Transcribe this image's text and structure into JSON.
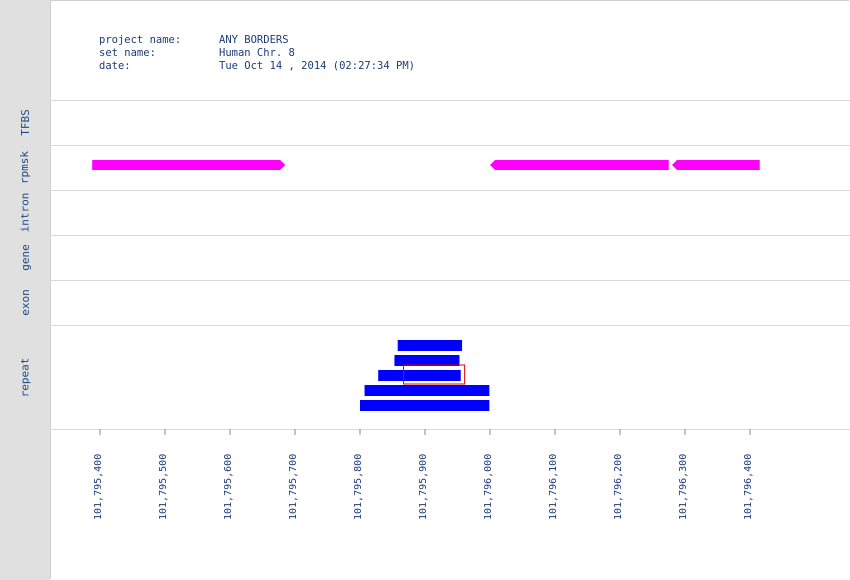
{
  "header": {
    "project_name_label": "project name:",
    "project_name": "ANY BORDERS",
    "set_name_label": "set name:",
    "set_name": "Human Chr. 8",
    "date_label": "date:",
    "date": "Tue Oct 14 , 2014 (02:27:34 PM)"
  },
  "tracks": [
    "TFBS",
    "rpmsk",
    "intron",
    "gene",
    "exon",
    "repeat"
  ],
  "colors": {
    "rpmsk": "#ff00ff",
    "repeat": "#0000ff",
    "highlight": "#e00000",
    "axis_text": "#1e3c78",
    "sidebar": "#e0e0e0"
  },
  "chart_data": {
    "type": "genome-track",
    "x_ticks": [
      101795400,
      101795500,
      101795600,
      101795700,
      101795800,
      101795900,
      101796000,
      101796100,
      101796200,
      101796300,
      101796400
    ],
    "x_tick_labels": [
      "101,795,400",
      "101,795,500",
      "101,795,600",
      "101,795,700",
      "101,795,800",
      "101,795,900",
      "101,796,000",
      "101,796,100",
      "101,796,200",
      "101,796,300",
      "101,796,400"
    ],
    "rpmsk_features": [
      {
        "start": 101795388,
        "end": 101795685,
        "strand": "+"
      },
      {
        "start": 101796000,
        "end": 101796275,
        "strand": "-"
      },
      {
        "start": 101796280,
        "end": 101796415,
        "strand": "-"
      }
    ],
    "repeat_features": [
      {
        "start": 101795858,
        "end": 101795957
      },
      {
        "start": 101795853,
        "end": 101795953
      },
      {
        "start": 101795828,
        "end": 101795955
      },
      {
        "start": 101795807,
        "end": 101795999
      },
      {
        "start": 101795800,
        "end": 101795999
      }
    ],
    "highlight": {
      "start": 101795867,
      "end": 101795961
    }
  }
}
